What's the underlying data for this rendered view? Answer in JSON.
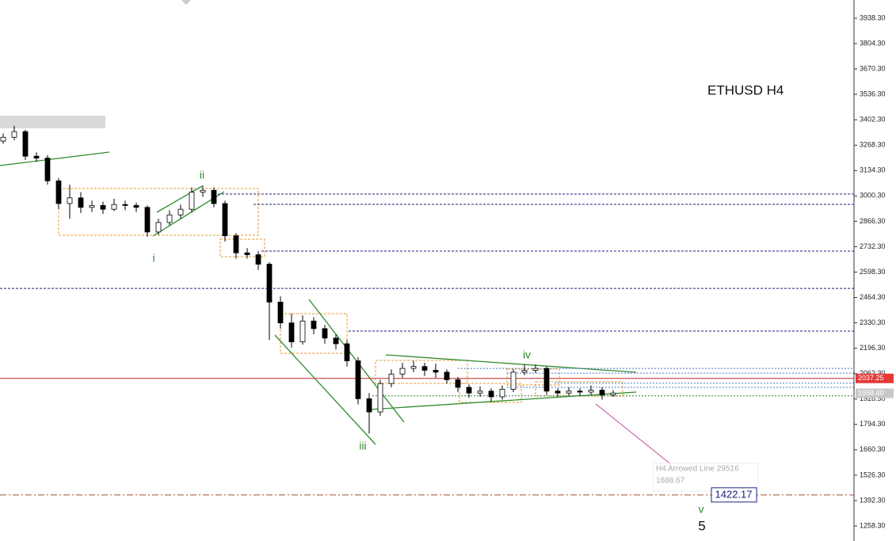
{
  "chart_data": {
    "type": "candlestick",
    "title": "ETHUSD H4",
    "ylim": [
      1178.9,
      4034.5
    ],
    "yticks": [
      {
        "value": 1258.3,
        "label": "1258.30"
      },
      {
        "value": 1392.3,
        "label": "1392.30"
      },
      {
        "value": 1526.3,
        "label": "1526.30"
      },
      {
        "value": 1660.3,
        "label": "1660.30"
      },
      {
        "value": 1794.3,
        "label": "1794.30"
      },
      {
        "value": 1928.3,
        "label": "1928.30"
      },
      {
        "value": 2062.3,
        "label": "2062.30"
      },
      {
        "value": 2196.3,
        "label": "2196.30"
      },
      {
        "value": 2330.3,
        "label": "2330.30"
      },
      {
        "value": 2464.3,
        "label": "2464.30"
      },
      {
        "value": 2598.3,
        "label": "2598.30"
      },
      {
        "value": 2732.3,
        "label": "2732.30"
      },
      {
        "value": 2866.3,
        "label": "2866.30"
      },
      {
        "value": 3000.3,
        "label": "3000.30"
      },
      {
        "value": 3134.3,
        "label": "3134.30"
      },
      {
        "value": 3268.3,
        "label": "3268.30"
      },
      {
        "value": 3402.3,
        "label": "3402.30"
      },
      {
        "value": 3536.3,
        "label": "3536.30"
      },
      {
        "value": 3670.3,
        "label": "3670.30"
      },
      {
        "value": 3804.3,
        "label": "3804.30"
      },
      {
        "value": 3938.3,
        "label": "3938.30"
      }
    ],
    "open": [
      3290,
      3310,
      3340,
      3210,
      3200,
      3080,
      2960,
      2990,
      2940,
      2950,
      2930,
      2955,
      2950,
      2940,
      2810,
      2860,
      2900,
      2930,
      3020,
      3030,
      2960,
      2790,
      2700,
      2690,
      2640,
      2440,
      2330,
      2230,
      2340,
      2300,
      2250,
      2220,
      2130,
      1930,
      1860,
      2010,
      2060,
      2090,
      2100,
      2080,
      2070,
      2030,
      1990,
      1960,
      1970,
      1940,
      1980,
      2070,
      2080,
      2090,
      1970,
      1960,
      1970,
      1965,
      1975,
      1950
    ],
    "high": [
      3330,
      3370,
      3350,
      3230,
      3215,
      3095,
      3060,
      3020,
      2975,
      2970,
      2985,
      2975,
      2965,
      2950,
      2880,
      2925,
      2955,
      3045,
      3055,
      3045,
      2975,
      2805,
      2725,
      2710,
      2650,
      2470,
      2380,
      2370,
      2360,
      2320,
      2270,
      2240,
      2150,
      1960,
      2030,
      2085,
      2120,
      2130,
      2120,
      2115,
      2085,
      2045,
      2005,
      1995,
      1985,
      2000,
      2085,
      2110,
      2110,
      2100,
      1985,
      1990,
      1985,
      2000,
      1990,
      1975
    ],
    "low": [
      3275,
      3295,
      3190,
      3180,
      3060,
      2930,
      2880,
      2910,
      2915,
      2905,
      2920,
      2925,
      2915,
      2785,
      2795,
      2845,
      2880,
      2915,
      2995,
      2940,
      2760,
      2670,
      2670,
      2610,
      2240,
      2300,
      2200,
      2215,
      2270,
      2220,
      2190,
      2100,
      1900,
      1745,
      1840,
      1990,
      2040,
      2070,
      2050,
      2040,
      2010,
      1965,
      1935,
      1940,
      1915,
      1925,
      1965,
      2055,
      2065,
      1950,
      1940,
      1945,
      1945,
      1950,
      1925,
      1940
    ],
    "close": [
      3310,
      3340,
      3210,
      3200,
      3080,
      2960,
      2990,
      2940,
      2950,
      2930,
      2955,
      2950,
      2940,
      2810,
      2860,
      2900,
      2930,
      3020,
      3030,
      2960,
      2790,
      2700,
      2690,
      2640,
      2440,
      2330,
      2230,
      2340,
      2300,
      2250,
      2220,
      2130,
      1930,
      1860,
      2010,
      2060,
      2090,
      2100,
      2080,
      2070,
      2030,
      1990,
      1960,
      1970,
      1940,
      1980,
      2070,
      2080,
      2090,
      1970,
      1960,
      1970,
      1965,
      1975,
      1950,
      1960
    ],
    "up_color": "#ffffff",
    "down_color": "#000000",
    "levels": [
      {
        "value": 3010,
        "style": "dashed",
        "color": "#1a237e"
      },
      {
        "value": 2956,
        "style": "dashed",
        "color": "#1a237e"
      },
      {
        "value": 2709,
        "style": "dashed",
        "color": "#1a237e"
      },
      {
        "value": 2512,
        "style": "dashed",
        "color": "#1a237e"
      },
      {
        "value": 2287,
        "style": "dashed",
        "color": "#1a237e"
      },
      {
        "value": 2090,
        "style": "dotted",
        "color": "#4a78c8"
      },
      {
        "value": 2065,
        "style": "dotted",
        "color": "#4a78c8"
      },
      {
        "value": 2012,
        "style": "dotted",
        "color": "#4a78c8"
      },
      {
        "value": 1990,
        "style": "dotted",
        "color": "#4a78c8"
      },
      {
        "value": 1945,
        "style": "dotted",
        "color": "#2e7d32"
      },
      {
        "value": 2037.25,
        "style": "solid",
        "color": "#c62828"
      },
      {
        "value": 1422.17,
        "style": "dashdot",
        "color": "#a0522d"
      }
    ],
    "price_tags": [
      {
        "value": 2037.25,
        "label": "2037.25",
        "color": "#e53935"
      },
      {
        "value": 1958.4,
        "label": "1958.40",
        "color": "#c8c8c8"
      }
    ],
    "target": {
      "value": 1422.17,
      "label": "1422.17"
    },
    "arrow_note": {
      "name": "H4 Arrowed Line 29516",
      "value": 1688.67,
      "label": "1688.67"
    },
    "waves": [
      "i",
      "ii",
      "iii",
      "iv",
      "v",
      "5"
    ]
  }
}
